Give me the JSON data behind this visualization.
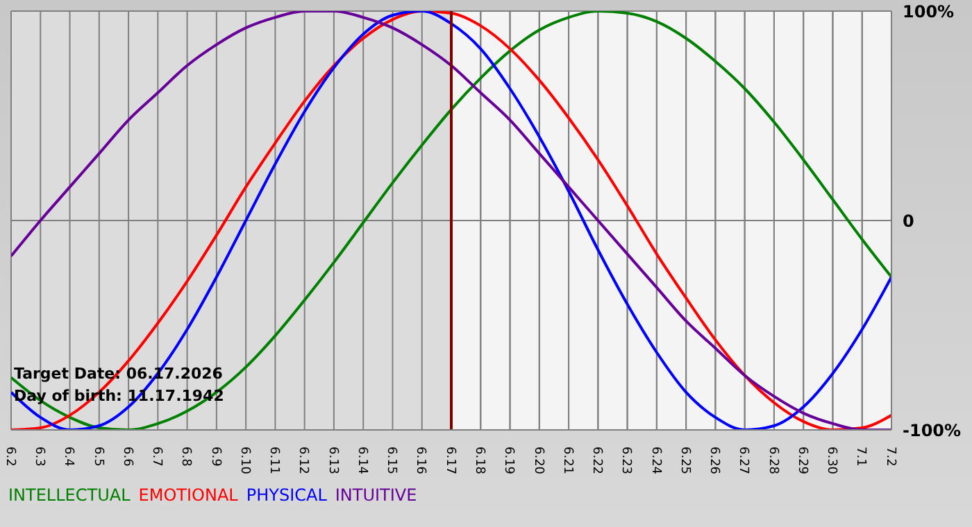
{
  "chart_data": {
    "type": "line",
    "categories": [
      "6.2",
      "6.3",
      "6.4",
      "6.5",
      "6.6",
      "6.7",
      "6.8",
      "6.9",
      "6.10",
      "6.11",
      "6.12",
      "6.13",
      "6.14",
      "6.15",
      "6.16",
      "6.17",
      "6.18",
      "6.19",
      "6.20",
      "6.21",
      "6.22",
      "6.23",
      "6.24",
      "6.25",
      "6.26",
      "6.27",
      "6.28",
      "6.29",
      "6.30",
      "7.1",
      "7.2"
    ],
    "series": [
      {
        "name": "INTELLECTUAL",
        "color": "#008000",
        "values": [
          -75,
          -86,
          -94,
          -99,
          -100,
          -97,
          -91,
          -82,
          -70,
          -55,
          -38,
          -20,
          -1,
          18,
          36,
          53,
          68,
          81,
          91,
          97,
          100,
          99,
          95,
          87,
          76,
          63,
          47,
          29,
          10,
          -9,
          -27
        ]
      },
      {
        "name": "EMOTIONAL",
        "color": "#ff0000",
        "values": [
          -100,
          -99,
          -93,
          -82,
          -67,
          -49,
          -29,
          -7,
          16,
          37,
          57,
          74,
          87,
          96,
          100,
          99,
          93,
          82,
          67,
          49,
          29,
          7,
          -16,
          -37,
          -57,
          -74,
          -87,
          -96,
          -100,
          -99,
          -93
        ]
      },
      {
        "name": "PHYSICAL",
        "color": "#0000ff",
        "values": [
          -82,
          -94,
          -100,
          -98,
          -89,
          -73,
          -52,
          -27,
          0,
          27,
          52,
          73,
          89,
          98,
          100,
          94,
          82,
          63,
          40,
          14,
          -14,
          -40,
          -63,
          -82,
          -94,
          -100,
          -98,
          -89,
          -73,
          -52,
          -27
        ]
      },
      {
        "name": "INTUITIVE",
        "color": "#660099",
        "values": [
          -17,
          0,
          16,
          32,
          48,
          61,
          74,
          84,
          92,
          97,
          100,
          100,
          97,
          92,
          84,
          74,
          61,
          48,
          32,
          16,
          0,
          -16,
          -32,
          -48,
          -61,
          -74,
          -84,
          -92,
          -97,
          -100,
          -100
        ]
      }
    ],
    "ylim": [
      -100,
      100
    ],
    "yticks": [
      {
        "value": 100,
        "label": "100%"
      },
      0,
      {
        "value": -100,
        "label": "-100%"
      }
    ],
    "grid": true,
    "legend": "bottom left",
    "marker": "none",
    "line_style": "solid",
    "ref_lines": [
      {
        "axis": "x",
        "value": "6.17",
        "color": "#800000"
      }
    ],
    "bands": [
      {
        "axis": "x",
        "from": "6.2",
        "to": "6.17",
        "color": "#dcdcdc"
      }
    ],
    "annotations": [
      "Target Date: 06.17.2026",
      "Day of birth: 11.17.1942"
    ]
  }
}
